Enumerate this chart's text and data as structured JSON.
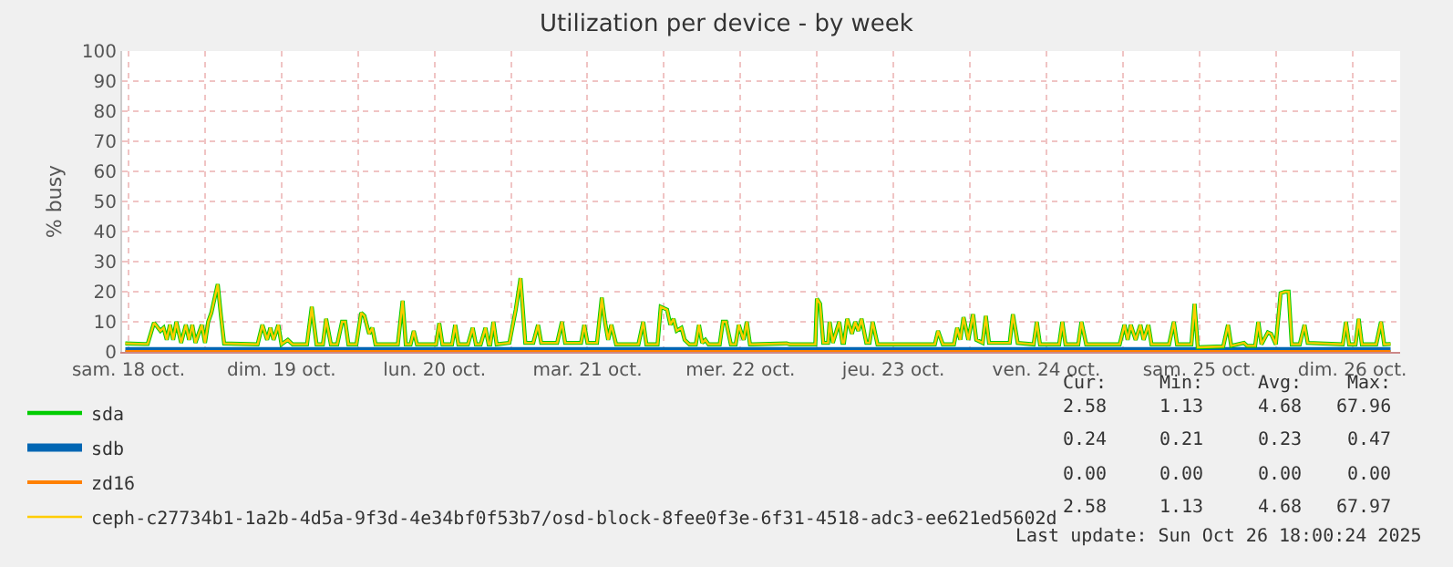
{
  "chart_data": {
    "type": "line",
    "title": "Utilization per device - by week",
    "ylabel": "% busy",
    "xlim": [
      "2025-10-18T11:00",
      "2025-10-26T19:30"
    ],
    "xticks": [
      {
        "value": "2025-10-18T12:00",
        "label": "sam. 18 oct."
      },
      {
        "value": "2025-10-19T00:00",
        "label": null
      },
      {
        "value": "2025-10-19T12:00",
        "label": "dim. 19 oct."
      },
      {
        "value": "2025-10-20T00:00",
        "label": null
      },
      {
        "value": "2025-10-20T12:00",
        "label": "lun. 20 oct."
      },
      {
        "value": "2025-10-21T00:00",
        "label": null
      },
      {
        "value": "2025-10-21T12:00",
        "label": "mar. 21 oct."
      },
      {
        "value": "2025-10-22T00:00",
        "label": null
      },
      {
        "value": "2025-10-22T12:00",
        "label": "mer. 22 oct."
      },
      {
        "value": "2025-10-23T00:00",
        "label": null
      },
      {
        "value": "2025-10-23T12:00",
        "label": "jeu. 23 oct."
      },
      {
        "value": "2025-10-24T00:00",
        "label": null
      },
      {
        "value": "2025-10-24T12:00",
        "label": "ven. 24 oct."
      },
      {
        "value": "2025-10-25T00:00",
        "label": null
      },
      {
        "value": "2025-10-25T12:00",
        "label": "sam. 25 oct."
      },
      {
        "value": "2025-10-26T00:00",
        "label": null
      },
      {
        "value": "2025-10-26T12:00",
        "label": "dim. 26 oct."
      }
    ],
    "ylim": [
      0,
      100
    ],
    "yticks": [
      0,
      10,
      20,
      30,
      40,
      50,
      60,
      70,
      80,
      90,
      100
    ],
    "grid": true,
    "legend": "bottom left",
    "marker": "none",
    "line_style": "solid",
    "x": [
      "2025-10-18T11:30",
      "2025-10-18T14:30",
      "2025-10-18T15:00",
      "2025-10-18T16:00",
      "2025-10-18T17:00",
      "2025-10-18T17:30",
      "2025-10-18T18:00",
      "2025-10-18T18:30",
      "2025-10-18T19:00",
      "2025-10-18T19:30",
      "2025-10-18T20:15",
      "2025-10-18T21:00",
      "2025-10-18T21:30",
      "2025-10-18T22:00",
      "2025-10-18T22:30",
      "2025-10-18T23:30",
      "2025-10-19T00:00",
      "2025-10-19T00:30",
      "2025-10-19T01:00",
      "2025-10-19T02:00",
      "2025-10-19T02:30",
      "2025-10-19T03:00",
      "2025-10-19T08:15",
      "2025-10-19T09:00",
      "2025-10-19T09:45",
      "2025-10-19T10:15",
      "2025-10-19T10:45",
      "2025-10-19T11:30",
      "2025-10-19T12:00",
      "2025-10-19T13:00",
      "2025-10-19T13:45",
      "2025-10-19T16:00",
      "2025-10-19T16:45",
      "2025-10-19T17:30",
      "2025-10-19T18:30",
      "2025-10-19T19:00",
      "2025-10-19T19:45",
      "2025-10-19T20:45",
      "2025-10-19T21:30",
      "2025-10-19T22:00",
      "2025-10-19T22:30",
      "2025-10-19T23:45",
      "2025-10-20T00:30",
      "2025-10-20T01:00",
      "2025-10-20T01:45",
      "2025-10-20T02:15",
      "2025-10-20T02:45",
      "2025-10-20T06:15",
      "2025-10-20T07:00",
      "2025-10-20T07:30",
      "2025-10-20T08:15",
      "2025-10-20T08:45",
      "2025-10-20T09:15",
      "2025-10-20T12:15",
      "2025-10-20T12:45",
      "2025-10-20T13:15",
      "2025-10-20T14:45",
      "2025-10-20T15:15",
      "2025-10-20T15:45",
      "2025-10-20T17:15",
      "2025-10-20T18:00",
      "2025-10-20T18:30",
      "2025-10-20T19:15",
      "2025-10-20T20:00",
      "2025-10-20T20:30",
      "2025-10-20T20:45",
      "2025-10-20T21:15",
      "2025-10-20T21:45",
      "2025-10-20T23:45",
      "2025-10-21T00:45",
      "2025-10-21T01:30",
      "2025-10-21T02:15",
      "2025-10-21T03:30",
      "2025-10-21T04:15",
      "2025-10-21T04:45",
      "2025-10-21T07:15",
      "2025-10-21T08:00",
      "2025-10-21T08:30",
      "2025-10-21T11:00",
      "2025-10-21T11:30",
      "2025-10-21T12:00",
      "2025-10-21T13:30",
      "2025-10-21T14:15",
      "2025-10-21T14:45",
      "2025-10-21T15:15",
      "2025-10-21T15:45",
      "2025-10-21T16:30",
      "2025-10-21T20:00",
      "2025-10-21T20:45",
      "2025-10-21T21:15",
      "2025-10-21T23:00",
      "2025-10-21T23:30",
      "2025-10-22T00:30",
      "2025-10-22T01:00",
      "2025-10-22T01:30",
      "2025-10-22T02:00",
      "2025-10-22T02:45",
      "2025-10-22T03:15",
      "2025-10-22T04:00",
      "2025-10-22T05:00",
      "2025-10-22T05:30",
      "2025-10-22T06:00",
      "2025-10-22T06:30",
      "2025-10-22T07:00",
      "2025-10-22T08:45",
      "2025-10-22T09:15",
      "2025-10-22T09:45",
      "2025-10-22T10:30",
      "2025-10-22T11:15",
      "2025-10-22T11:45",
      "2025-10-22T12:30",
      "2025-10-22T13:00",
      "2025-10-22T13:30",
      "2025-10-22T14:00",
      "2025-10-22T19:15",
      "2025-10-22T19:45",
      "2025-10-22T23:45",
      "2025-10-23T00:00",
      "2025-10-23T00:30",
      "2025-10-23T01:00",
      "2025-10-23T01:45",
      "2025-10-23T02:00",
      "2025-10-23T02:30",
      "2025-10-23T03:30",
      "2025-10-23T04:00",
      "2025-10-23T04:15",
      "2025-10-23T04:45",
      "2025-10-23T05:30",
      "2025-10-23T06:00",
      "2025-10-23T06:30",
      "2025-10-23T07:00",
      "2025-10-23T07:45",
      "2025-10-23T08:15",
      "2025-10-23T08:45",
      "2025-10-23T09:30",
      "2025-10-23T18:30",
      "2025-10-23T19:00",
      "2025-10-23T19:45",
      "2025-10-23T21:30",
      "2025-10-23T22:00",
      "2025-10-23T22:30",
      "2025-10-23T23:00",
      "2025-10-23T23:45",
      "2025-10-24T00:30",
      "2025-10-24T01:00",
      "2025-10-24T02:00",
      "2025-10-24T02:30",
      "2025-10-24T03:00",
      "2025-10-24T06:15",
      "2025-10-24T06:45",
      "2025-10-24T07:30",
      "2025-10-24T10:00",
      "2025-10-24T10:30",
      "2025-10-24T11:00",
      "2025-10-24T14:00",
      "2025-10-24T14:30",
      "2025-10-24T15:00",
      "2025-10-24T17:00",
      "2025-10-24T17:30",
      "2025-10-24T18:15",
      "2025-10-24T23:30",
      "2025-10-25T00:15",
      "2025-10-25T00:45",
      "2025-10-25T01:15",
      "2025-10-25T02:00",
      "2025-10-25T02:45",
      "2025-10-25T03:15",
      "2025-10-25T04:00",
      "2025-10-25T04:30",
      "2025-10-25T07:15",
      "2025-10-25T08:00",
      "2025-10-25T08:30",
      "2025-10-25T10:45",
      "2025-10-25T11:15",
      "2025-10-25T11:45",
      "2025-10-25T15:45",
      "2025-10-25T16:30",
      "2025-10-25T17:00",
      "2025-10-25T19:00",
      "2025-10-25T19:30",
      "2025-10-25T20:45",
      "2025-10-25T21:15",
      "2025-10-25T21:45",
      "2025-10-25T22:45",
      "2025-10-25T23:15",
      "2025-10-26T00:00",
      "2025-10-26T00:45",
      "2025-10-26T01:30",
      "2025-10-26T02:00",
      "2025-10-26T02:30",
      "2025-10-26T03:45",
      "2025-10-26T04:30",
      "2025-10-26T05:00",
      "2025-10-26T10:30",
      "2025-10-26T11:00",
      "2025-10-26T11:30",
      "2025-10-26T12:30",
      "2025-10-26T13:00",
      "2025-10-26T13:30",
      "2025-10-26T15:45",
      "2025-10-26T16:30",
      "2025-10-26T17:00",
      "2025-10-26T18:00"
    ],
    "series": [
      {
        "name": "sda",
        "color": "#00cc00",
        "values": [
          2.8,
          2.6,
          2.6,
          9.7,
          7,
          8,
          4,
          9,
          4,
          10,
          3,
          9,
          4,
          9,
          3,
          9,
          3,
          10,
          13,
          22.5,
          12,
          2.8,
          2.5,
          9,
          4,
          8,
          4,
          9,
          2.5,
          4,
          2.5,
          2.5,
          15,
          2.5,
          2.5,
          11,
          2.5,
          2.5,
          10,
          10,
          2.5,
          2.5,
          13,
          12,
          6,
          8,
          2.5,
          2.5,
          17,
          2.5,
          2.5,
          7,
          2.5,
          2.5,
          9.5,
          2.5,
          2.5,
          9,
          2.5,
          2.5,
          8,
          2.5,
          2.5,
          8,
          2.5,
          2.5,
          10,
          2.5,
          3,
          14,
          24.5,
          3,
          3,
          9,
          3,
          3,
          10,
          3,
          3,
          9,
          3,
          3,
          18,
          10,
          4,
          9,
          2.5,
          2.5,
          10,
          2.5,
          2.5,
          15,
          14,
          9,
          11,
          7,
          8,
          4,
          2.5,
          2.5,
          9,
          3,
          4,
          2.5,
          2.5,
          10,
          10,
          2.5,
          2.5,
          9,
          4,
          10,
          2.5,
          2.5,
          2.8,
          2.5,
          2.5,
          17.7,
          16,
          3,
          3,
          10,
          3,
          10,
          3,
          3,
          11,
          6,
          10,
          7,
          11,
          3,
          3,
          10,
          2.5,
          2.5,
          7,
          2.5,
          2.5,
          8,
          4,
          11.5,
          4,
          12.5,
          4,
          3,
          12,
          3,
          3,
          12.5,
          3,
          2.5,
          10,
          2.5,
          2.5,
          10,
          2.5,
          2.5,
          10,
          2.5,
          2.5,
          9,
          4,
          9,
          4,
          9,
          4,
          9,
          2.5,
          2.5,
          10,
          2.5,
          2.5,
          16,
          1.5,
          1.8,
          9,
          2,
          3,
          2,
          2,
          10,
          2.5,
          6.5,
          6,
          2.5,
          19.5,
          20,
          20,
          2.5,
          2.5,
          9,
          3,
          2.5,
          10,
          2.5,
          2.5,
          11,
          2.5,
          2.5,
          10,
          2.5,
          2.6
        ]
      },
      {
        "name": "sdb",
        "color": "#0066b3",
        "x": [
          "2025-10-18T11:30",
          "2025-10-26T18:00"
        ],
        "values": [
          0.2,
          0.2
        ]
      },
      {
        "name": "zd16",
        "color": "#ff8000",
        "x": [
          "2025-10-18T11:30",
          "2025-10-26T18:00"
        ],
        "values": [
          0,
          0
        ]
      },
      {
        "name": "ceph-c27734b1-1a2b-4d5a-9f3d-4e34bf0f53b7/osd-block-8fee0f3e-6f31-4518-adc3-ee621ed5602d",
        "color": "#ffcc00",
        "values": [
          2.8,
          2.6,
          2.6,
          9.7,
          7,
          8,
          4,
          9,
          4,
          10,
          3,
          9,
          4,
          9,
          3,
          9,
          3,
          10,
          13,
          22.5,
          12,
          2.8,
          2.5,
          9,
          4,
          8,
          4,
          9,
          2.5,
          4,
          2.5,
          2.5,
          15,
          2.5,
          2.5,
          11,
          2.5,
          2.5,
          10,
          10,
          2.5,
          2.5,
          13,
          12,
          6,
          8,
          2.5,
          2.5,
          17,
          2.5,
          2.5,
          7,
          2.5,
          2.5,
          9.5,
          2.5,
          2.5,
          9,
          2.5,
          2.5,
          8,
          2.5,
          2.5,
          8,
          2.5,
          2.5,
          10,
          2.5,
          3,
          14,
          24.5,
          3,
          3,
          9,
          3,
          3,
          10,
          3,
          3,
          9,
          3,
          3,
          18,
          10,
          4,
          9,
          2.5,
          2.5,
          10,
          2.5,
          2.5,
          15,
          14,
          9,
          11,
          7,
          8,
          4,
          2.5,
          2.5,
          9,
          3,
          4,
          2.5,
          2.5,
          10,
          10,
          2.5,
          2.5,
          9,
          4,
          10,
          2.5,
          2.5,
          2.8,
          2.5,
          2.5,
          17.7,
          16,
          3,
          3,
          10,
          3,
          10,
          3,
          3,
          11,
          6,
          10,
          7,
          11,
          3,
          3,
          10,
          2.5,
          2.5,
          7,
          2.5,
          2.5,
          8,
          4,
          11.5,
          4,
          12.5,
          4,
          3,
          12,
          3,
          3,
          12.5,
          3,
          2.5,
          10,
          2.5,
          2.5,
          10,
          2.5,
          2.5,
          10,
          2.5,
          2.5,
          9,
          4,
          9,
          4,
          9,
          4,
          9,
          2.5,
          2.5,
          10,
          2.5,
          2.5,
          16,
          1.5,
          1.8,
          9,
          2,
          3,
          2,
          2,
          10,
          2.5,
          6.5,
          6,
          2.5,
          19.5,
          20,
          20,
          2.5,
          2.5,
          9,
          3,
          2.5,
          10,
          2.5,
          2.5,
          11,
          2.5,
          2.5,
          10,
          2.5,
          2.6
        ]
      }
    ],
    "annotations": [
      "Cur:",
      "Min:",
      "Avg:",
      "Max:",
      "2.58",
      "1.13",
      "4.68",
      "67.96",
      "0.24",
      "0.21",
      "0.23",
      "0.47",
      "0.00",
      "0.00",
      "0.00",
      "0.00",
      "2.58",
      "1.13",
      "4.68",
      "67.97",
      "Last update: Sun Oct 26 18:00:24 2025"
    ]
  }
}
